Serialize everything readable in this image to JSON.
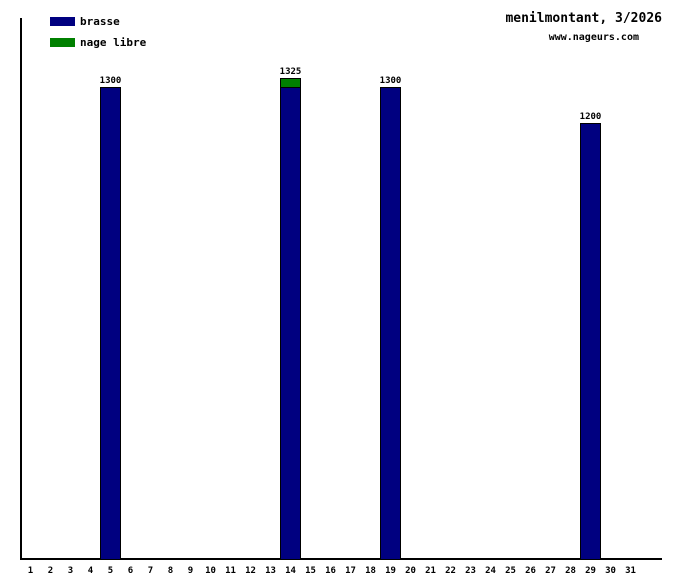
{
  "header": {
    "title": "menilmontant, 3/2026",
    "website": "www.nageurs.com"
  },
  "legend": {
    "items": [
      {
        "label": "brasse",
        "color": "#000080"
      },
      {
        "label": "nage libre",
        "color": "#008000"
      }
    ]
  },
  "chart_data": {
    "type": "bar",
    "stacked": true,
    "title": "menilmontant, 3/2026",
    "subtitle": "www.nageurs.com",
    "xlabel": "",
    "ylabel": "",
    "ylim": [
      0,
      1490
    ],
    "grid": false,
    "legend_position": "top-left",
    "categories": [
      1,
      2,
      3,
      4,
      5,
      6,
      7,
      8,
      9,
      10,
      11,
      12,
      13,
      14,
      15,
      16,
      17,
      18,
      19,
      20,
      21,
      22,
      23,
      24,
      25,
      26,
      27,
      28,
      29,
      30,
      31
    ],
    "series": [
      {
        "name": "brasse",
        "color": "#000080",
        "values": [
          0,
          0,
          0,
          0,
          1300,
          0,
          0,
          0,
          0,
          0,
          0,
          0,
          0,
          1300,
          0,
          0,
          0,
          0,
          1300,
          0,
          0,
          0,
          0,
          0,
          0,
          0,
          0,
          0,
          1200,
          0,
          0
        ]
      },
      {
        "name": "nage libre",
        "color": "#008000",
        "values": [
          0,
          0,
          0,
          0,
          0,
          0,
          0,
          0,
          0,
          0,
          0,
          0,
          0,
          25,
          0,
          0,
          0,
          0,
          0,
          0,
          0,
          0,
          0,
          0,
          0,
          0,
          0,
          0,
          0,
          0,
          0
        ]
      }
    ],
    "bar_total_labels": [
      "",
      "",
      "",
      "",
      "1300",
      "",
      "",
      "",
      "",
      "",
      "",
      "",
      "",
      "1325",
      "",
      "",
      "",
      "",
      "1300",
      "",
      "",
      "",
      "",
      "",
      "",
      "",
      "",
      "",
      "1200",
      "",
      ""
    ]
  }
}
